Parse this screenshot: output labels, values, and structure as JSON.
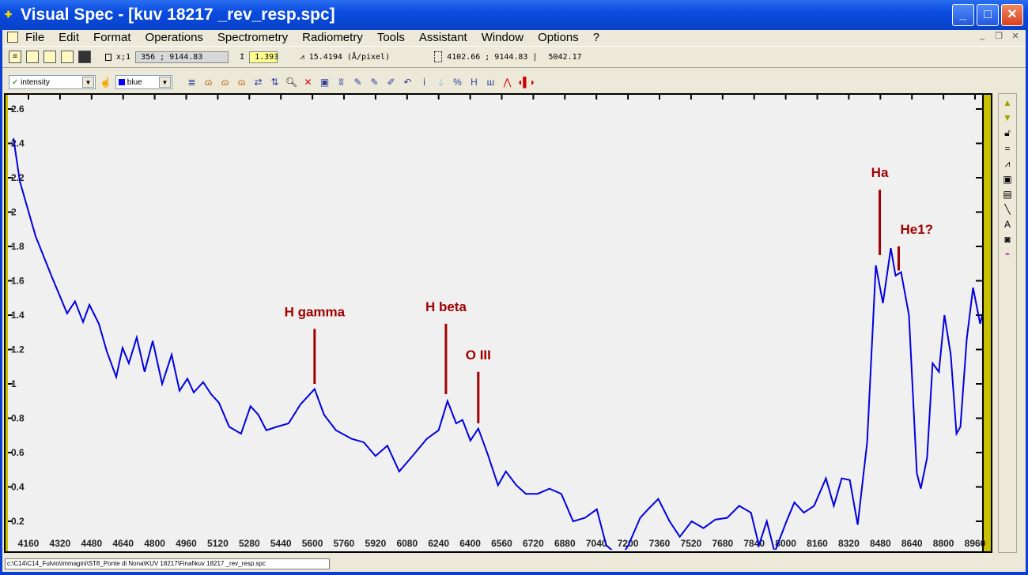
{
  "window": {
    "title": "Visual Spec - [kuv 18217 _rev_resp.spc]",
    "buttons": [
      "_",
      "□",
      "✕"
    ]
  },
  "menu": [
    "File",
    "Edit",
    "Format",
    "Operations",
    "Spectrometry",
    "Radiometry",
    "Tools",
    "Assistant",
    "Window",
    "Options",
    "?"
  ],
  "toolbar1": {
    "xy_label": "x;1",
    "cursor": "356 ; 9144.83",
    "i_label": "I",
    "intensity": "1.393",
    "dispersion": "15.4194 (Å/pixel)",
    "range": "4102.66 ; 9144.83 |",
    "span": "5042.17"
  },
  "toolbar2": {
    "profile": "intensity",
    "color": "blue"
  },
  "side_icons": [
    "arrow-up-icon",
    "arrow-down-icon",
    "lock-icon",
    "equals-icon",
    "graph-icon",
    "frame-icon",
    "grid-icon",
    "line-icon",
    "text-icon",
    "camera-icon",
    "rainbow-icon"
  ],
  "status": {
    "path": "c:\\C14\\C14_Fulvio\\Immagini\\ST8_Ponte di Nona\\KUV 18217\\Final\\kuv 18217 _rev_resp.spc"
  },
  "colors": {
    "line": "#0000e0",
    "annotation": "#a00000",
    "plot_bg": "#f0f0f0",
    "frame": "#c8c000"
  },
  "chart_data": {
    "type": "line",
    "xlim": [
      4084,
      9048
    ],
    "ylim": [
      0,
      2.7
    ],
    "xticks": [
      4160,
      4320,
      4480,
      4640,
      4800,
      4960,
      5120,
      5280,
      5440,
      5600,
      5760,
      5920,
      6080,
      6240,
      6400,
      6560,
      6720,
      6880,
      7040,
      7200,
      7360,
      7520,
      7680,
      7840,
      8000,
      8160,
      8320,
      8480,
      8640,
      8800,
      8960
    ],
    "yticks": [
      0.2,
      0.4,
      0.6,
      0.8,
      1,
      1.2,
      1.4,
      1.6,
      1.8,
      2,
      2.2,
      2.4,
      2.6
    ],
    "x": [
      4084,
      4116,
      4196,
      4276,
      4356,
      4396,
      4437,
      4469,
      4517,
      4557,
      4605,
      4637,
      4669,
      4709,
      4749,
      4790,
      4838,
      4886,
      4926,
      4966,
      4998,
      5046,
      5086,
      5126,
      5178,
      5238,
      5286,
      5326,
      5366,
      5419,
      5479,
      5539,
      5611,
      5659,
      5719,
      5799,
      5860,
      5920,
      5980,
      6040,
      6100,
      6180,
      6240,
      6285,
      6329,
      6361,
      6401,
      6441,
      6489,
      6541,
      6581,
      6634,
      6682,
      6742,
      6802,
      6862,
      6922,
      6982,
      7042,
      7090,
      7162,
      7202,
      7262,
      7302,
      7354,
      7411,
      7463,
      7523,
      7583,
      7643,
      7703,
      7764,
      7824,
      7864,
      7904,
      7944,
      8004,
      8044,
      8092,
      8144,
      8204,
      8244,
      8284,
      8325,
      8365,
      8413,
      8457,
      8493,
      8533,
      8557,
      8585,
      8625,
      8645,
      8665,
      8685,
      8717,
      8745,
      8777,
      8805,
      8837,
      8866,
      8886,
      8918,
      8950,
      8986,
      9006,
      9030,
      9046
    ],
    "y": [
      2.43,
      2.18,
      1.86,
      1.63,
      1.41,
      1.48,
      1.36,
      1.46,
      1.35,
      1.19,
      1.04,
      1.21,
      1.12,
      1.27,
      1.07,
      1.25,
      1.0,
      1.17,
      0.96,
      1.03,
      0.95,
      1.01,
      0.94,
      0.89,
      0.75,
      0.71,
      0.87,
      0.82,
      0.73,
      0.75,
      0.77,
      0.88,
      0.97,
      0.82,
      0.73,
      0.68,
      0.66,
      0.58,
      0.64,
      0.49,
      0.57,
      0.68,
      0.73,
      0.9,
      0.77,
      0.79,
      0.67,
      0.74,
      0.59,
      0.41,
      0.49,
      0.41,
      0.36,
      0.36,
      0.39,
      0.36,
      0.2,
      0.22,
      0.27,
      0.06,
      -0.01,
      0.06,
      0.22,
      0.27,
      0.33,
      0.2,
      0.11,
      0.2,
      0.16,
      0.21,
      0.22,
      0.29,
      0.25,
      0.06,
      0.2,
      0.02,
      0.2,
      0.31,
      0.25,
      0.29,
      0.45,
      0.29,
      0.45,
      0.44,
      0.18,
      0.66,
      1.69,
      1.47,
      1.79,
      1.63,
      1.65,
      1.4,
      0.94,
      0.48,
      0.39,
      0.57,
      1.12,
      1.07,
      1.4,
      1.17,
      0.71,
      0.75,
      1.26,
      1.56,
      1.35,
      1.44,
      1.3,
      1.42
    ],
    "annotations": [
      {
        "text": "H gamma",
        "x": 5611,
        "y_top": 1.32,
        "y_bottom": 1.0
      },
      {
        "text": "H beta",
        "x": 6277,
        "y_top": 1.35,
        "y_bottom": 0.94
      },
      {
        "text": "O III",
        "x": 6441,
        "y_top": 1.07,
        "y_bottom": 0.77
      },
      {
        "text": "Ha",
        "x": 8477,
        "y_top": 2.13,
        "y_bottom": 1.75
      },
      {
        "text": "He1?",
        "x": 8573,
        "y_top": 1.8,
        "y_bottom": 1.66
      }
    ],
    "grid": false
  }
}
